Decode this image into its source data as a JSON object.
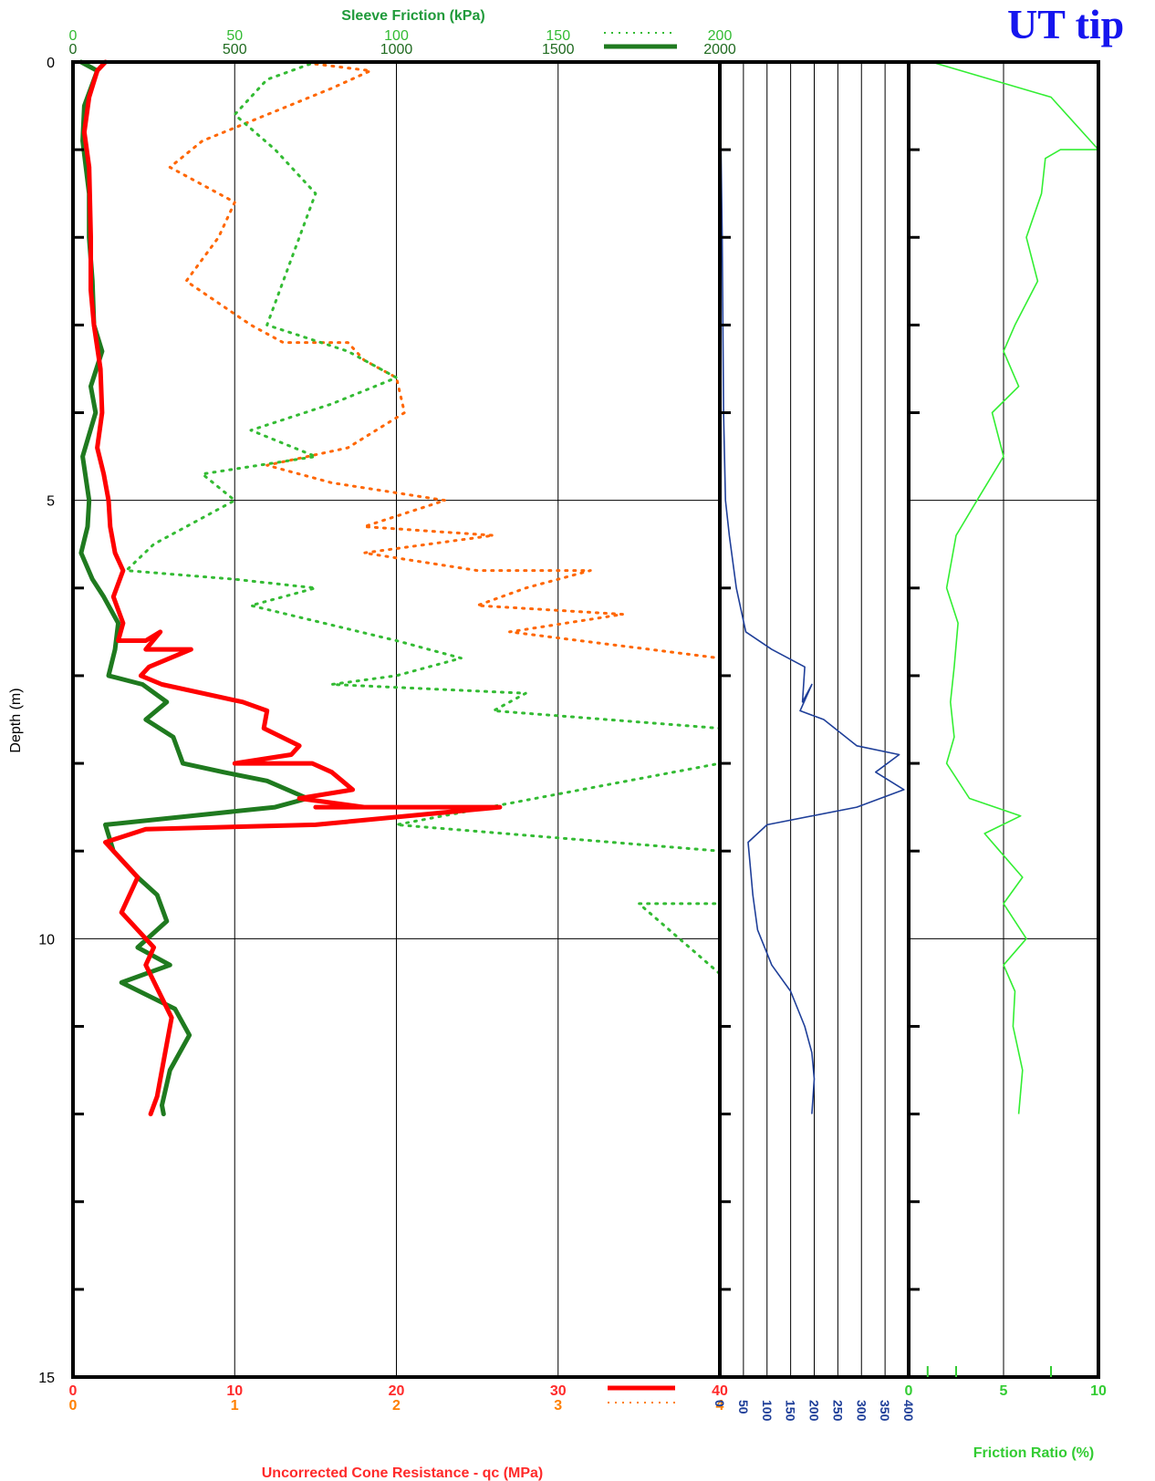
{
  "brand": "UT tip",
  "chart_data": [
    {
      "type": "line",
      "panel": "cone resistance and sleeve friction",
      "ylabel": "Depth (m)",
      "ylim": [
        0,
        15
      ],
      "y_ticks": [
        "0",
        "5",
        "10",
        "15"
      ],
      "grid": true,
      "top_axis": {
        "title": "Sleeve Friction (kPa)",
        "scale_fine": [
          "0",
          "50",
          "100",
          "150",
          "200"
        ],
        "scale_coarse": [
          "0",
          "500",
          "1000",
          "1500",
          "2000"
        ]
      },
      "bottom_axis": {
        "title": "Uncorrected Cone Resistance - qc (MPa)",
        "scale_coarse": [
          "0",
          "10",
          "20",
          "30",
          "40"
        ],
        "scale_fine": [
          "0",
          "1",
          "2",
          "3",
          "4"
        ]
      },
      "xlim_coarse": [
        0,
        40
      ],
      "series": [
        {
          "key": "qc",
          "color": "#ff0000",
          "style": "solid-thick",
          "points": [
            [
              2.0,
              0.0
            ],
            [
              1.5,
              0.1
            ],
            [
              1.0,
              0.4
            ],
            [
              0.7,
              0.8
            ],
            [
              1.0,
              1.2
            ],
            [
              1.1,
              2.0
            ],
            [
              1.1,
              2.6
            ],
            [
              1.3,
              3.0
            ],
            [
              1.7,
              3.5
            ],
            [
              1.8,
              4.0
            ],
            [
              1.5,
              4.4
            ],
            [
              1.9,
              4.7
            ],
            [
              2.2,
              5.0
            ],
            [
              2.3,
              5.3
            ],
            [
              2.6,
              5.6
            ],
            [
              3.1,
              5.8
            ],
            [
              2.5,
              6.1
            ],
            [
              3.1,
              6.4
            ],
            [
              2.8,
              6.6
            ],
            [
              4.5,
              6.6
            ],
            [
              5.4,
              6.5
            ],
            [
              4.5,
              6.7
            ],
            [
              7.3,
              6.7
            ],
            [
              4.7,
              6.9
            ],
            [
              4.2,
              7.0
            ],
            [
              5.5,
              7.1
            ],
            [
              10.5,
              7.3
            ],
            [
              12.0,
              7.4
            ],
            [
              11.8,
              7.6
            ],
            [
              14.0,
              7.8
            ],
            [
              13.5,
              7.9
            ],
            [
              10.0,
              8.0
            ],
            [
              14.8,
              8.0
            ],
            [
              16.0,
              8.1
            ],
            [
              17.3,
              8.3
            ],
            [
              14.0,
              8.4
            ],
            [
              18.0,
              8.5
            ],
            [
              15.0,
              8.5
            ],
            [
              26.4,
              8.5
            ],
            [
              15.0,
              8.7
            ],
            [
              4.5,
              8.75
            ],
            [
              2.0,
              8.9
            ],
            [
              3.0,
              9.1
            ],
            [
              4.0,
              9.3
            ],
            [
              3.0,
              9.7
            ],
            [
              4.0,
              9.9
            ],
            [
              5.0,
              10.1
            ],
            [
              4.5,
              10.3
            ],
            [
              5.3,
              10.6
            ],
            [
              6.1,
              10.9
            ],
            [
              5.8,
              11.2
            ],
            [
              5.5,
              11.5
            ],
            [
              5.2,
              11.8
            ],
            [
              4.8,
              12.0
            ]
          ]
        },
        {
          "key": "fs_fine",
          "color": "#ff6600",
          "style": "dotted",
          "note": "sleeve friction on 0-200 kPa scale",
          "points": [
            [
              14,
              0.0
            ],
            [
              18.4,
              0.1
            ],
            [
              16,
              0.3
            ],
            [
              12,
              0.6
            ],
            [
              8,
              0.9
            ],
            [
              6,
              1.2
            ],
            [
              10,
              1.6
            ],
            [
              9,
              2.0
            ],
            [
              7,
              2.5
            ],
            [
              11,
              3.0
            ],
            [
              13,
              3.2
            ],
            [
              17,
              3.2
            ],
            [
              18,
              3.4
            ],
            [
              20,
              3.6
            ],
            [
              20.5,
              4.0
            ],
            [
              17,
              4.4
            ],
            [
              12,
              4.6
            ],
            [
              16,
              4.8
            ],
            [
              23,
              5.0
            ],
            [
              18,
              5.3
            ],
            [
              26,
              5.4
            ],
            [
              18,
              5.6
            ],
            [
              25,
              5.8
            ],
            [
              32,
              5.8
            ],
            [
              28,
              6.0
            ],
            [
              25,
              6.2
            ],
            [
              34,
              6.3
            ],
            [
              27,
              6.5
            ],
            [
              40,
              6.8
            ]
          ]
        },
        {
          "key": "fs",
          "color": "#1f7a1f",
          "style": "solid-thick",
          "points": [
            [
              0.5,
              0.0
            ],
            [
              1.5,
              0.1
            ],
            [
              0.7,
              0.5
            ],
            [
              0.6,
              0.9
            ],
            [
              1.0,
              1.5
            ],
            [
              1.0,
              2.0
            ],
            [
              1.2,
              2.5
            ],
            [
              1.3,
              3.0
            ],
            [
              1.8,
              3.3
            ],
            [
              1.1,
              3.7
            ],
            [
              1.4,
              4.0
            ],
            [
              0.6,
              4.5
            ],
            [
              1.0,
              5.0
            ],
            [
              0.9,
              5.3
            ],
            [
              0.5,
              5.6
            ],
            [
              1.2,
              5.9
            ],
            [
              1.9,
              6.1
            ],
            [
              2.8,
              6.4
            ],
            [
              2.6,
              6.7
            ],
            [
              2.2,
              7.0
            ],
            [
              4.3,
              7.1
            ],
            [
              5.8,
              7.3
            ],
            [
              4.5,
              7.5
            ],
            [
              6.2,
              7.7
            ],
            [
              6.8,
              8.0
            ],
            [
              9.3,
              8.1
            ],
            [
              12.0,
              8.2
            ],
            [
              14.5,
              8.4
            ],
            [
              12.5,
              8.5
            ],
            [
              2.0,
              8.7
            ],
            [
              2.5,
              9.0
            ],
            [
              4.0,
              9.3
            ],
            [
              5.2,
              9.5
            ],
            [
              5.8,
              9.8
            ],
            [
              4.0,
              10.1
            ],
            [
              6.0,
              10.3
            ],
            [
              3.0,
              10.5
            ],
            [
              6.3,
              10.8
            ],
            [
              7.2,
              11.1
            ],
            [
              6.0,
              11.5
            ],
            [
              5.5,
              11.9
            ],
            [
              5.6,
              12.0
            ]
          ]
        },
        {
          "key": "fs_coarse_fine",
          "color": "#33bb33",
          "style": "dotted",
          "points": [
            [
              3.2,
              0.0
            ],
            [
              15,
              0.0
            ],
            [
              12,
              0.2
            ],
            [
              10,
              0.6
            ],
            [
              12.5,
              1.0
            ],
            [
              15,
              1.5
            ],
            [
              14,
              2.0
            ],
            [
              13,
              2.5
            ],
            [
              12,
              3.0
            ],
            [
              17,
              3.3
            ],
            [
              20,
              3.6
            ],
            [
              16,
              3.9
            ],
            [
              11,
              4.2
            ],
            [
              15,
              4.5
            ],
            [
              8,
              4.7
            ],
            [
              10,
              5.0
            ],
            [
              7,
              5.3
            ],
            [
              5,
              5.5
            ],
            [
              3.3,
              5.8
            ],
            [
              10,
              5.9
            ],
            [
              15,
              6.0
            ],
            [
              11,
              6.2
            ],
            [
              20,
              6.6
            ],
            [
              24,
              6.8
            ],
            [
              20,
              7.0
            ],
            [
              16,
              7.1
            ],
            [
              28,
              7.2
            ],
            [
              26,
              7.4
            ],
            [
              40,
              7.6
            ],
            [
              40,
              8.0
            ],
            [
              20,
              8.7
            ],
            [
              40,
              9.0
            ],
            [
              40,
              9.6
            ],
            [
              35,
              9.6
            ],
            [
              40,
              10.4
            ]
          ]
        }
      ]
    },
    {
      "type": "line",
      "panel": "pore pressure",
      "x_ticks": [
        "0",
        "50",
        "100",
        "150",
        "200",
        "250",
        "300",
        "350",
        "400"
      ],
      "ylim": [
        0,
        15
      ],
      "xlim": [
        0,
        400
      ],
      "color": "#1f3f99",
      "points": [
        [
          0,
          0.0
        ],
        [
          5,
          2.0
        ],
        [
          8,
          4.0
        ],
        [
          12,
          5.0
        ],
        [
          20,
          5.4
        ],
        [
          35,
          6.0
        ],
        [
          55,
          6.5
        ],
        [
          110,
          6.7
        ],
        [
          180,
          6.9
        ],
        [
          175,
          7.3
        ],
        [
          195,
          7.1
        ],
        [
          170,
          7.4
        ],
        [
          220,
          7.5
        ],
        [
          290,
          7.8
        ],
        [
          380,
          7.9
        ],
        [
          330,
          8.1
        ],
        [
          390,
          8.3
        ],
        [
          290,
          8.5
        ],
        [
          100,
          8.7
        ],
        [
          60,
          8.9
        ],
        [
          70,
          9.5
        ],
        [
          80,
          9.9
        ],
        [
          110,
          10.3
        ],
        [
          150,
          10.6
        ],
        [
          180,
          11.0
        ],
        [
          195,
          11.3
        ],
        [
          200,
          11.6
        ],
        [
          195,
          12.0
        ]
      ]
    },
    {
      "type": "line",
      "panel": "friction ratio",
      "xlabel": "Friction Ratio (%)",
      "x_ticks": [
        "0",
        "5",
        "10"
      ],
      "xlim": [
        0,
        10
      ],
      "ylim": [
        0,
        15
      ],
      "color": "#33ee33",
      "points": [
        [
          1.2,
          0.0
        ],
        [
          7.5,
          0.4
        ],
        [
          10,
          1.0
        ],
        [
          8,
          1.0
        ],
        [
          7.2,
          1.1
        ],
        [
          7.0,
          1.5
        ],
        [
          6.2,
          2.0
        ],
        [
          6.8,
          2.5
        ],
        [
          5.6,
          3.0
        ],
        [
          5.0,
          3.3
        ],
        [
          5.8,
          3.7
        ],
        [
          4.4,
          4.0
        ],
        [
          5.0,
          4.5
        ],
        [
          3.6,
          5.0
        ],
        [
          2.5,
          5.4
        ],
        [
          2.0,
          6.0
        ],
        [
          2.6,
          6.4
        ],
        [
          2.4,
          6.9
        ],
        [
          2.2,
          7.3
        ],
        [
          2.4,
          7.7
        ],
        [
          2.0,
          8.0
        ],
        [
          3.2,
          8.4
        ],
        [
          5.9,
          8.6
        ],
        [
          4.0,
          8.8
        ],
        [
          4.8,
          9.0
        ],
        [
          6.0,
          9.3
        ],
        [
          5.0,
          9.6
        ],
        [
          6.2,
          10.0
        ],
        [
          5.0,
          10.3
        ],
        [
          5.6,
          10.6
        ],
        [
          5.5,
          11.0
        ],
        [
          6.0,
          11.5
        ],
        [
          5.8,
          12.0
        ]
      ]
    }
  ]
}
